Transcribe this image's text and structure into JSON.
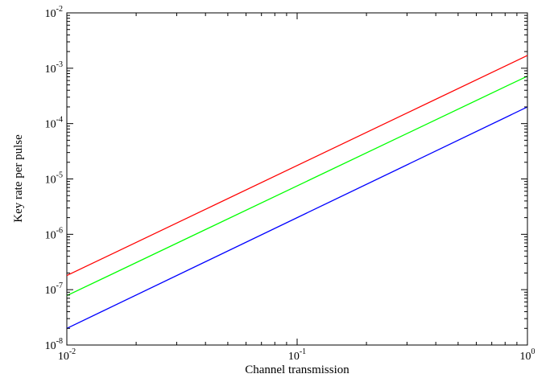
{
  "chart_data": {
    "type": "line",
    "title": "",
    "xlabel": "Channel transmission",
    "ylabel": "Key rate per pulse",
    "xscale": "log",
    "yscale": "log",
    "xlim": [
      0.01,
      1
    ],
    "ylim": [
      1e-08,
      0.01
    ],
    "grid": false,
    "legend": "none",
    "x_ticks": [
      {
        "value": 0.01,
        "base": "10",
        "exp": "-2"
      },
      {
        "value": 0.1,
        "base": "10",
        "exp": "-1"
      },
      {
        "value": 1,
        "base": "10",
        "exp": "0"
      }
    ],
    "y_ticks": [
      {
        "value": 1e-08,
        "base": "10",
        "exp": "-8"
      },
      {
        "value": 1e-07,
        "base": "10",
        "exp": "-7"
      },
      {
        "value": 1e-06,
        "base": "10",
        "exp": "-6"
      },
      {
        "value": 1e-05,
        "base": "10",
        "exp": "-5"
      },
      {
        "value": 0.0001,
        "base": "10",
        "exp": "-4"
      },
      {
        "value": 0.001,
        "base": "10",
        "exp": "-3"
      },
      {
        "value": 0.01,
        "base": "10",
        "exp": "-2"
      }
    ],
    "series": [
      {
        "color": "#ff0000",
        "x": [
          0.01,
          1
        ],
        "y": [
          1.8e-07,
          0.0017
        ]
      },
      {
        "color": "#00ff00",
        "x": [
          0.01,
          1
        ],
        "y": [
          7.8e-08,
          0.00072
        ]
      },
      {
        "color": "#0000ff",
        "x": [
          0.01,
          1
        ],
        "y": [
          2e-08,
          0.0002
        ]
      }
    ]
  }
}
